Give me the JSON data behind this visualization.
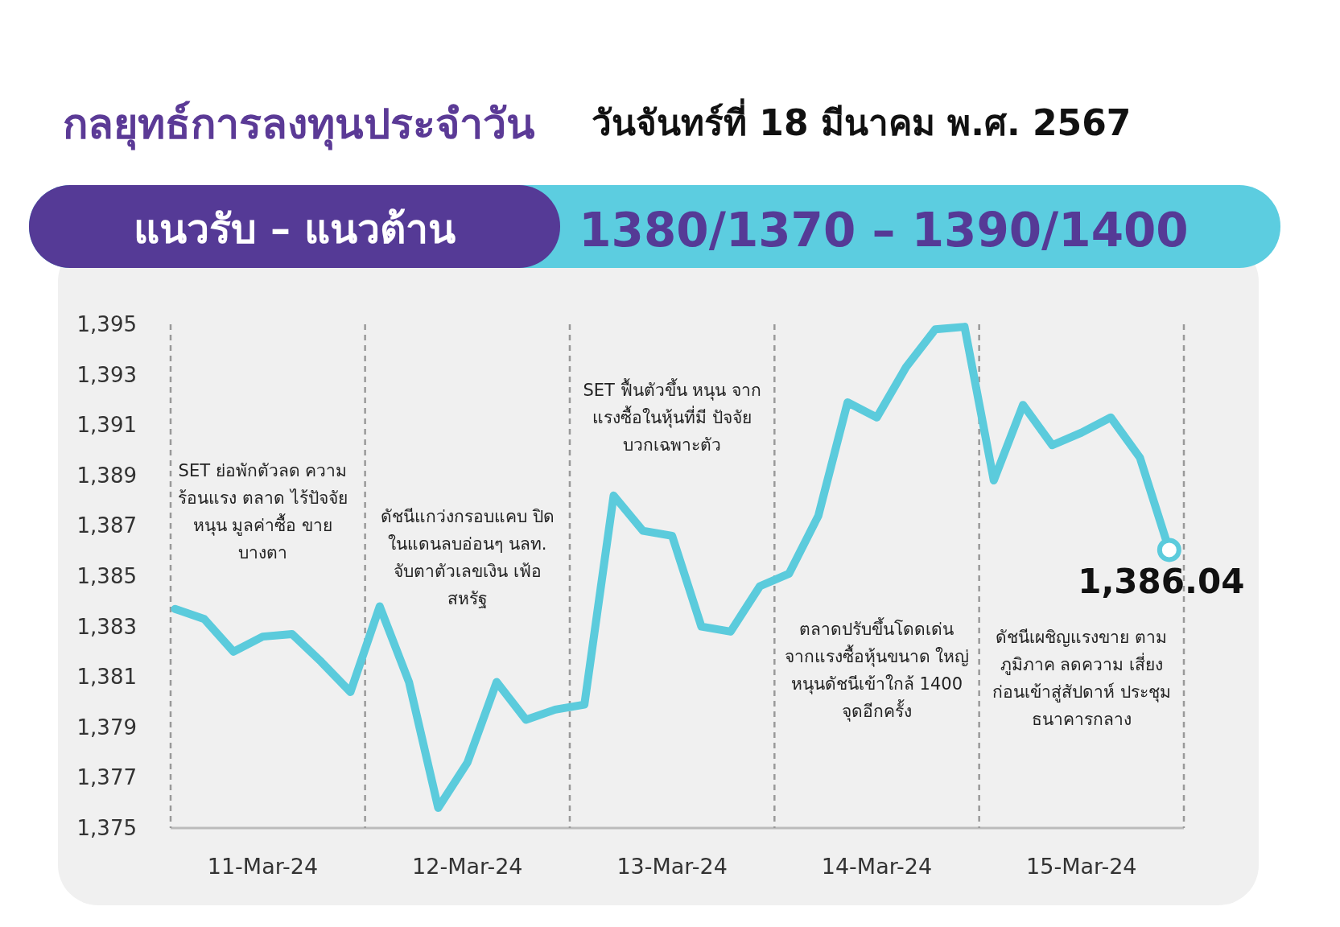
{
  "chart_data": {
    "type": "line",
    "title": "กลยุทธ์การลงทุนประจำวัน",
    "subtitle": "วันจันทร์ที่ 18 มีนาคม พ.ศ. 2567",
    "annotations": [
      "แนวรับ – แนวต้าน",
      "1380/1370 – 1390/1400",
      "SET ย่อพักตัวลด ความร้อนแรง ตลาด ไร้ปัจจัยหนุน มูลค่าซื้อ ขายบางตา",
      "ดัชนีแกว่งกรอบแคบ ปิดในแดนลบอ่อนๆ นลท. จับตาตัวเลขเงิน เฟ้อสหรัฐ",
      "SET ฟื้นตัวขึ้น หนุน จากแรงซื้อในหุ้นที่มี ปัจจัยบวกเฉพาะตัว",
      "ตลาดปรับขึ้นโดดเด่น จากแรงซื้อหุ้นขนาด ใหญ่ หนุนดัชนีเข้าใกล้ 1400 จุดอีกครั้ง",
      "ดัชนีเผชิญแรงขาย ตามภูมิภาค ลดความ เสี่ยงก่อนเข้าสู่สัปดาห์ ประชุมธนาคารกลาง"
    ],
    "categories": [
      null,
      null,
      null,
      "11-Mar-24",
      null,
      null,
      null,
      null,
      null,
      null,
      "12-Mar-24",
      null,
      null,
      null,
      null,
      null,
      null,
      "13-Mar-24",
      null,
      null,
      null,
      null,
      null,
      null,
      "14-Mar-24",
      null,
      null,
      null,
      null,
      null,
      null,
      "15-Mar-24",
      null,
      null,
      null
    ],
    "values": [
      1383.7,
      1383.3,
      1382.0,
      1382.6,
      1382.7,
      1381.6,
      1380.4,
      1383.8,
      1380.8,
      1375.8,
      1377.6,
      1380.8,
      1379.3,
      1379.7,
      1379.9,
      1388.2,
      1386.8,
      1386.6,
      1383.0,
      1382.8,
      1384.6,
      1385.1,
      1387.4,
      1391.9,
      1391.3,
      1393.3,
      1394.8,
      1394.9,
      1388.8,
      1391.8,
      1390.2,
      1390.7,
      1391.3,
      1389.7,
      1386.04
    ],
    "value_labels": [
      null,
      null,
      null,
      null,
      null,
      null,
      null,
      null,
      null,
      null,
      null,
      null,
      null,
      null,
      null,
      null,
      null,
      null,
      null,
      null,
      null,
      null,
      null,
      null,
      null,
      null,
      null,
      null,
      null,
      null,
      null,
      null,
      null,
      null,
      "1,386.04"
    ],
    "color": "#5bcbdc",
    "ylim": [
      1375,
      1395
    ],
    "yticks": [
      {
        "value": 1375,
        "label": "1,375"
      },
      {
        "value": 1377,
        "label": "1,377"
      },
      {
        "value": 1379,
        "label": "1,379"
      },
      {
        "value": 1381,
        "label": "1,381"
      },
      {
        "value": 1383,
        "label": "1,383"
      },
      {
        "value": 1385,
        "label": "1,385"
      },
      {
        "value": 1387,
        "label": "1,387"
      },
      {
        "value": 1389,
        "label": "1,389"
      },
      {
        "value": 1391,
        "label": "1,391"
      },
      {
        "value": 1393,
        "label": "1,393"
      },
      {
        "value": 1395,
        "label": "1,395"
      }
    ],
    "grid": false,
    "line_style": "solid"
  }
}
